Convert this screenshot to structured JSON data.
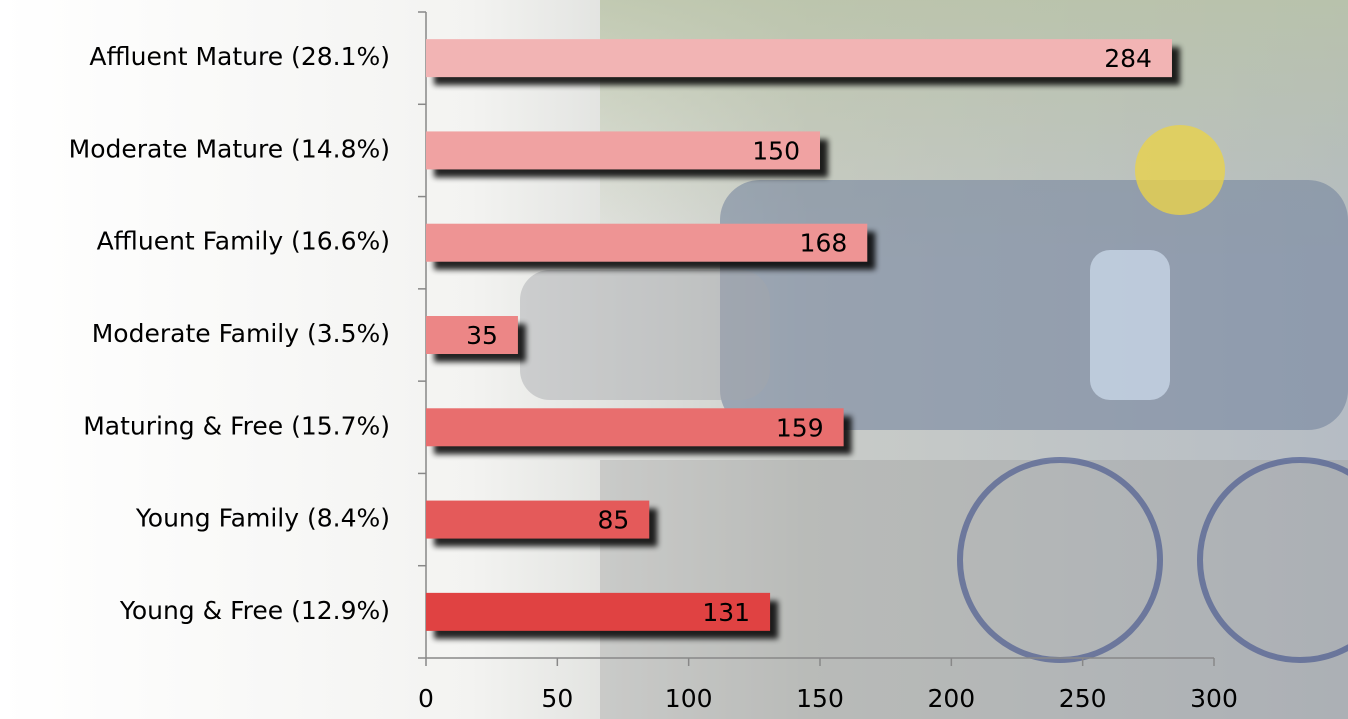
{
  "chart_data": {
    "type": "hbar",
    "categories": [
      "Affluent Mature (28.1%)",
      "Moderate Mature (14.8%)",
      "Affluent Family (16.6%)",
      "Moderate Family (3.5%)",
      "Maturing & Free (15.7%)",
      "Young Family (8.4%)",
      "Young & Free (12.9%)"
    ],
    "values": [
      284,
      150,
      168,
      35,
      159,
      85,
      131
    ],
    "colors": [
      "#f2b4b4",
      "#f0a2a2",
      "#ee9494",
      "#ec8686",
      "#e86e6e",
      "#e45a5a",
      "#e04242"
    ],
    "xlim": [
      0,
      300
    ],
    "xticks": [
      0,
      50,
      100,
      150,
      200,
      250,
      300
    ]
  }
}
